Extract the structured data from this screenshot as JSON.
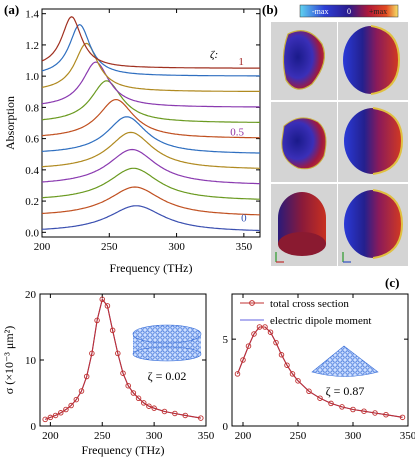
{
  "panel_labels": {
    "a": "(a)",
    "b": "(b)",
    "c": "(c)"
  },
  "colorbar": {
    "min_label": "-max",
    "mid_label": "0",
    "max_label": "+max",
    "colors": [
      "#5fd3f0",
      "#2d3fd6",
      "#2a1a8c",
      "#9a1040",
      "#e03020",
      "#f5e26a"
    ]
  },
  "chart_data": [
    {
      "type": "line",
      "panel": "(a)",
      "xlabel": "Frequency (THz)",
      "ylabel": "Absorption",
      "xlim": [
        200,
        362
      ],
      "ylim": [
        -0.03,
        1.43
      ],
      "xticks": [
        200,
        250,
        300,
        350
      ],
      "yticks": [
        0.0,
        0.2,
        0.4,
        0.6,
        0.8,
        1.0,
        1.2,
        1.4
      ],
      "ytick_labels": [
        "0.0",
        "0.2",
        "0.4",
        "0.6",
        "0.8",
        "1.0",
        "1.2",
        "1.4"
      ],
      "zeta_label": "ζ:",
      "curve_labels": [
        {
          "text": "1",
          "x": 348,
          "y": 1.07,
          "color": "#a02020"
        },
        {
          "text": "0.5",
          "x": 345,
          "y": 0.62,
          "color": "#9030a0"
        },
        {
          "text": "0",
          "x": 350,
          "y": 0.07,
          "color": "#3050b0"
        }
      ],
      "series": [
        {
          "offset": 0.0,
          "peak_x": 270,
          "peak_h": 0.17,
          "width": 25,
          "color": "#3a4fb0"
        },
        {
          "offset": 0.1,
          "peak_x": 269,
          "peak_h": 0.19,
          "width": 24,
          "color": "#c05020"
        },
        {
          "offset": 0.2,
          "peak_x": 268,
          "peak_h": 0.21,
          "width": 23,
          "color": "#6a9a20"
        },
        {
          "offset": 0.3,
          "peak_x": 267,
          "peak_h": 0.23,
          "width": 22,
          "color": "#8a3ab0"
        },
        {
          "offset": 0.4,
          "peak_x": 266,
          "peak_h": 0.24,
          "width": 20,
          "color": "#b08a20"
        },
        {
          "offset": 0.5,
          "peak_x": 263,
          "peak_h": 0.24,
          "width": 18,
          "color": "#2f6fc0"
        },
        {
          "offset": 0.6,
          "peak_x": 255,
          "peak_h": 0.25,
          "width": 16,
          "color": "#c05020"
        },
        {
          "offset": 0.7,
          "peak_x": 248,
          "peak_h": 0.27,
          "width": 14,
          "color": "#6a9a20"
        },
        {
          "offset": 0.8,
          "peak_x": 240,
          "peak_h": 0.29,
          "width": 12,
          "color": "#8a3ab0"
        },
        {
          "offset": 0.9,
          "peak_x": 233,
          "peak_h": 0.31,
          "width": 10.5,
          "color": "#b08a20"
        },
        {
          "offset": 1.0,
          "peak_x": 228,
          "peak_h": 0.33,
          "width": 9.5,
          "color": "#2f6fc0"
        },
        {
          "offset": 1.05,
          "peak_x": 222,
          "peak_h": 0.33,
          "width": 9,
          "color": "#a03020"
        }
      ]
    },
    {
      "type": "line",
      "panel": "(c) left",
      "xlabel": "Frequency (THz)",
      "ylabel": "σ (×10⁻³ μm²)",
      "xlim": [
        190,
        350
      ],
      "ylim": [
        0,
        20
      ],
      "xticks": [
        200,
        250,
        300,
        350
      ],
      "yticks": [
        0,
        10,
        20
      ],
      "inset_label": "ζ = 0.02",
      "series": [
        {
          "name": "total cross section",
          "x": [
            195,
            200,
            205,
            210,
            215,
            220,
            225,
            230,
            235,
            240,
            245,
            250,
            255,
            260,
            265,
            270,
            275,
            280,
            285,
            290,
            295,
            300,
            310,
            320,
            330,
            345
          ],
          "values": [
            1.0,
            1.3,
            1.6,
            2.0,
            2.5,
            3.1,
            4.0,
            5.3,
            7.5,
            11.0,
            16.0,
            19.2,
            18.2,
            14.5,
            11.0,
            8.0,
            6.1,
            5.0,
            4.2,
            3.5,
            3.0,
            2.7,
            2.2,
            1.9,
            1.6,
            1.2
          ],
          "color": "#c03030",
          "style": "line+circle"
        },
        {
          "name": "electric dipole moment",
          "x": [
            195,
            200,
            205,
            210,
            215,
            220,
            225,
            230,
            235,
            240,
            245,
            250,
            255,
            260,
            265,
            270,
            275,
            280,
            285,
            290,
            295,
            300,
            310,
            320,
            330,
            345
          ],
          "values": [
            1.0,
            1.3,
            1.6,
            2.0,
            2.5,
            3.1,
            4.0,
            5.3,
            7.5,
            11.0,
            16.0,
            19.2,
            18.2,
            14.5,
            11.0,
            8.0,
            6.1,
            5.0,
            4.2,
            3.5,
            3.0,
            2.7,
            2.2,
            1.9,
            1.6,
            1.2
          ],
          "color": "#6060e0",
          "style": "line"
        }
      ]
    },
    {
      "type": "line",
      "panel": "(c) right",
      "xlabel": "",
      "ylabel": "",
      "xlim": [
        190,
        350
      ],
      "ylim": [
        0,
        7.6
      ],
      "xticks": [
        200,
        250,
        300,
        350
      ],
      "yticks": [
        0,
        5
      ],
      "inset_label": "ζ = 0.87",
      "series": [
        {
          "name": "total cross section",
          "x": [
            195,
            200,
            205,
            210,
            215,
            220,
            225,
            230,
            235,
            240,
            245,
            250,
            260,
            270,
            280,
            290,
            300,
            310,
            320,
            330,
            345
          ],
          "values": [
            3.0,
            3.8,
            4.6,
            5.3,
            5.7,
            5.7,
            5.4,
            4.8,
            4.1,
            3.5,
            3.0,
            2.6,
            2.0,
            1.6,
            1.3,
            1.1,
            0.95,
            0.85,
            0.75,
            0.65,
            0.5
          ],
          "color": "#c03030",
          "style": "line+circle"
        },
        {
          "name": "electric dipole moment",
          "x": [
            195,
            200,
            205,
            210,
            215,
            220,
            225,
            230,
            235,
            240,
            245,
            250,
            260,
            270,
            280,
            290,
            300,
            310,
            320,
            330,
            345
          ],
          "values": [
            3.0,
            3.8,
            4.6,
            5.3,
            5.7,
            5.7,
            5.4,
            4.8,
            4.1,
            3.5,
            3.0,
            2.6,
            2.0,
            1.6,
            1.3,
            1.1,
            0.95,
            0.85,
            0.75,
            0.65,
            0.5
          ],
          "color": "#6060e0",
          "style": "line"
        }
      ],
      "legend": [
        "total cross section",
        "electric dipole moment"
      ]
    }
  ]
}
